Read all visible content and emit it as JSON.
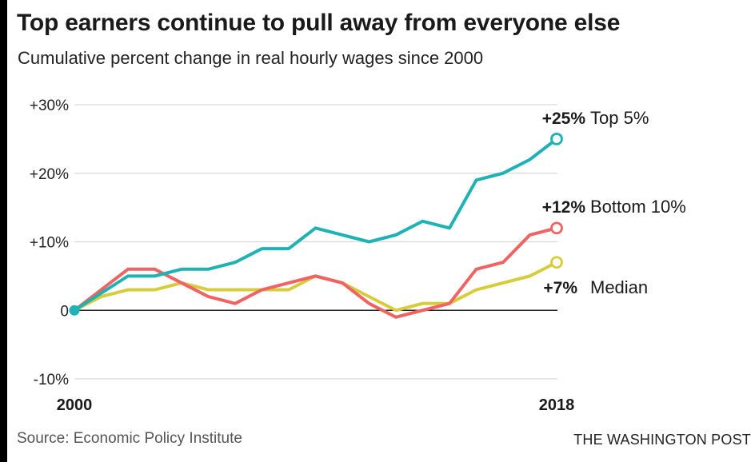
{
  "title": "Top earners continue to pull away from everyone else",
  "subtitle": "Cumulative percent change in real hourly wages since 2000",
  "source": "Source: Economic Policy Institute",
  "credit": "THE WASHINGTON POST",
  "chart_data": {
    "type": "line",
    "title": "Top earners continue to pull away from everyone else",
    "subtitle": "Cumulative percent change in real hourly wages since 2000",
    "xlabel": "",
    "ylabel": "",
    "xlim": [
      2000,
      2018
    ],
    "ylim": [
      -10,
      30
    ],
    "grid": true,
    "legend": "direct labels at line ends",
    "y_ticks": [
      {
        "value": 30,
        "label": "+30%"
      },
      {
        "value": 20,
        "label": "+20%"
      },
      {
        "value": 10,
        "label": "+10%"
      },
      {
        "value": 0,
        "label": "0"
      },
      {
        "value": -10,
        "label": "-10%"
      }
    ],
    "x_ticks": [
      {
        "value": 2000,
        "label": "2000"
      },
      {
        "value": 2018,
        "label": "2018"
      }
    ],
    "x": [
      2000,
      2001,
      2002,
      2003,
      2004,
      2005,
      2006,
      2007,
      2008,
      2009,
      2010,
      2011,
      2012,
      2013,
      2014,
      2015,
      2016,
      2017,
      2018
    ],
    "series": [
      {
        "name": "Top 5%",
        "end_label": "+25%",
        "color": "#1fb2b5",
        "values": [
          0,
          2.5,
          5,
          5,
          6,
          6,
          7,
          9,
          9,
          12,
          11,
          10,
          11,
          13,
          12,
          19,
          20,
          22,
          25
        ]
      },
      {
        "name": "Bottom 10%",
        "end_label": "+12%",
        "color": "#ef6363",
        "values": [
          0,
          3,
          6,
          6,
          4,
          2,
          1,
          3,
          4,
          5,
          4,
          1,
          -1,
          0,
          1,
          6,
          7,
          11,
          12
        ]
      },
      {
        "name": "Median",
        "end_label": "+7%",
        "color": "#d6cc3c",
        "values": [
          0,
          2,
          3,
          3,
          4,
          3,
          3,
          3,
          3,
          5,
          4,
          2,
          0,
          1,
          1,
          3,
          4,
          5,
          7
        ]
      }
    ]
  }
}
